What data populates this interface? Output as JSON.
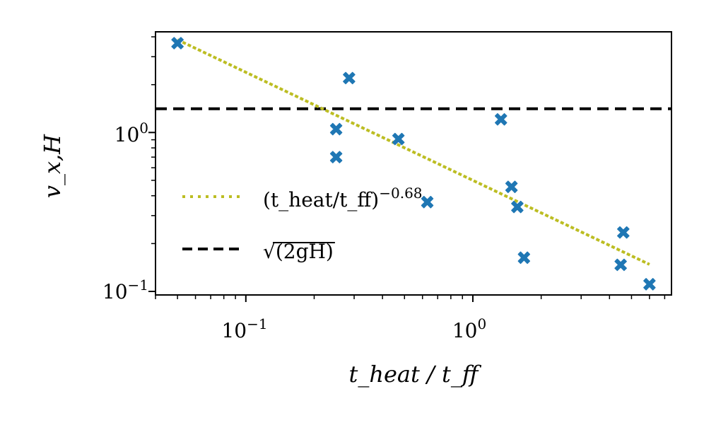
{
  "chart_data": {
    "type": "scatter",
    "xscale": "log",
    "yscale": "log",
    "xlim": [
      0.04,
      7.5
    ],
    "ylim": [
      0.095,
      4.3
    ],
    "xlabel": "t_heat / t_ff",
    "ylabel": "v_x,H",
    "x_ticks": [
      {
        "value": 0.1,
        "base": "10",
        "exp": "−1"
      },
      {
        "value": 1.0,
        "base": "10",
        "exp": "0"
      }
    ],
    "y_ticks": [
      {
        "value": 0.1,
        "base": "10",
        "exp": "−1"
      },
      {
        "value": 1.0,
        "base": "10",
        "exp": "0"
      }
    ],
    "series": [
      {
        "name": "simulations",
        "kind": "scatter",
        "marker": "X",
        "color": "#1f77b4",
        "points": [
          {
            "x": 0.05,
            "y": 3.65
          },
          {
            "x": 0.25,
            "y": 1.05
          },
          {
            "x": 0.25,
            "y": 0.7
          },
          {
            "x": 0.285,
            "y": 2.2
          },
          {
            "x": 0.47,
            "y": 0.91
          },
          {
            "x": 0.63,
            "y": 0.365
          },
          {
            "x": 1.33,
            "y": 1.21
          },
          {
            "x": 1.48,
            "y": 0.455
          },
          {
            "x": 1.57,
            "y": 0.34
          },
          {
            "x": 1.68,
            "y": 0.163
          },
          {
            "x": 4.48,
            "y": 0.147
          },
          {
            "x": 4.6,
            "y": 0.235
          },
          {
            "x": 6.0,
            "y": 0.111
          }
        ]
      },
      {
        "name": "fit",
        "kind": "line",
        "style": "dotted",
        "color": "#bcbd22",
        "coefficient": 0.5,
        "exponent": -0.68,
        "x_range": [
          0.05,
          6.0
        ]
      },
      {
        "name": "sqrt_2gH",
        "kind": "hline",
        "style": "dashed",
        "color": "#000000",
        "y": 1.41
      }
    ],
    "legend": {
      "position": "lower-left",
      "entries": [
        {
          "series": "fit",
          "label_main": "(t_heat/t_ff)",
          "label_sup": "−0.68"
        },
        {
          "series": "sqrt_2gH",
          "label_main": "√(2gH)",
          "radicand": "2gH"
        }
      ]
    }
  }
}
